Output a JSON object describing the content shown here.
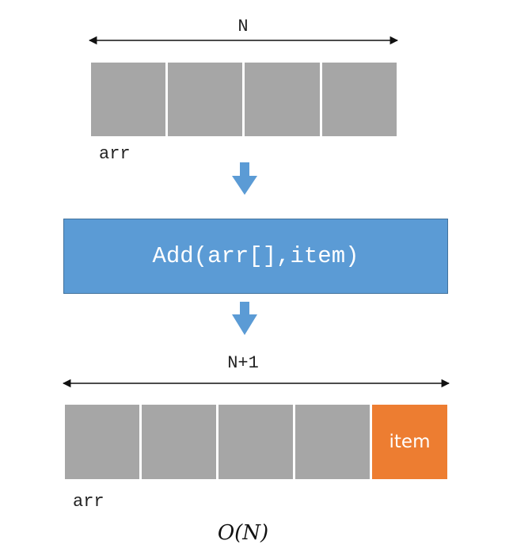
{
  "top_array": {
    "length_label": "N",
    "name_label": "arr",
    "cell_count": 4,
    "cell_color": "#a6a6a6"
  },
  "operation": {
    "label": "Add(arr[],item)",
    "color": "#5b9bd5"
  },
  "bottom_array": {
    "length_label": "N+1",
    "name_label": "arr",
    "cell_count": 5,
    "new_item_label": "item",
    "cell_color": "#a6a6a6",
    "new_item_color": "#ed7d31"
  },
  "arrow_color": "#5b9bd5",
  "complexity": "O(N)"
}
